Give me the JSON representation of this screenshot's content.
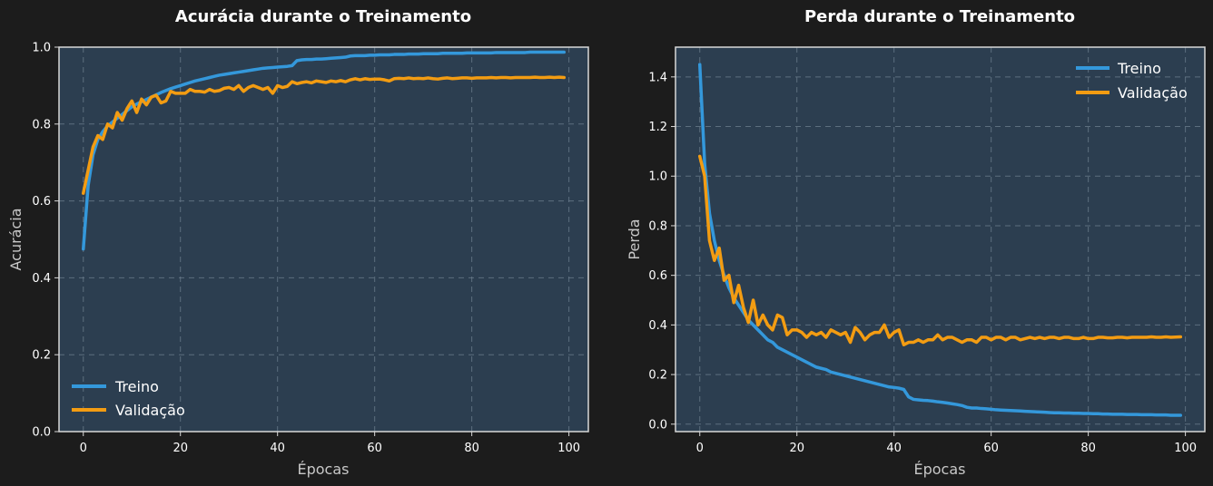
{
  "colors": {
    "train": "#3498db",
    "validation": "#f39c12",
    "plot_bg": "#2c3e50",
    "figure_bg": "#1c1c1c"
  },
  "chart_data": [
    {
      "type": "line",
      "title": "Acurácia durante o Treinamento",
      "xlabel": "Épocas",
      "ylabel": "Acurácia",
      "xlim": [
        -5,
        104
      ],
      "ylim": [
        0,
        1.0
      ],
      "xticks": [
        0,
        20,
        40,
        60,
        80,
        100
      ],
      "yticks": [
        0.0,
        0.2,
        0.4,
        0.6,
        0.8,
        1.0
      ],
      "ytick_labels": [
        "0.0",
        "0.2",
        "0.4",
        "0.6",
        "0.8",
        "1.0"
      ],
      "grid": true,
      "legend_position": "lower-left",
      "series": [
        {
          "name": "Treino",
          "color": "#3498db",
          "values": [
            0.475,
            0.64,
            0.72,
            0.76,
            0.78,
            0.795,
            0.805,
            0.815,
            0.825,
            0.835,
            0.845,
            0.852,
            0.858,
            0.864,
            0.87,
            0.876,
            0.882,
            0.887,
            0.892,
            0.896,
            0.9,
            0.904,
            0.908,
            0.912,
            0.915,
            0.918,
            0.921,
            0.924,
            0.927,
            0.929,
            0.931,
            0.933,
            0.935,
            0.937,
            0.939,
            0.941,
            0.943,
            0.945,
            0.946,
            0.947,
            0.948,
            0.949,
            0.95,
            0.952,
            0.965,
            0.967,
            0.968,
            0.968,
            0.969,
            0.969,
            0.97,
            0.971,
            0.972,
            0.973,
            0.974,
            0.977,
            0.978,
            0.978,
            0.978,
            0.979,
            0.979,
            0.98,
            0.98,
            0.98,
            0.981,
            0.981,
            0.981,
            0.982,
            0.982,
            0.982,
            0.983,
            0.983,
            0.983,
            0.983,
            0.984,
            0.984,
            0.984,
            0.984,
            0.984,
            0.985,
            0.985,
            0.985,
            0.985,
            0.985,
            0.985,
            0.986,
            0.986,
            0.986,
            0.986,
            0.986,
            0.986,
            0.986,
            0.987,
            0.987,
            0.987,
            0.987,
            0.987,
            0.987,
            0.987,
            0.987
          ]
        },
        {
          "name": "Validação",
          "color": "#f39c12",
          "values": [
            0.62,
            0.68,
            0.74,
            0.77,
            0.76,
            0.8,
            0.79,
            0.83,
            0.81,
            0.84,
            0.86,
            0.83,
            0.865,
            0.85,
            0.87,
            0.875,
            0.855,
            0.86,
            0.885,
            0.88,
            0.88,
            0.88,
            0.89,
            0.885,
            0.885,
            0.883,
            0.89,
            0.885,
            0.887,
            0.893,
            0.895,
            0.89,
            0.9,
            0.885,
            0.895,
            0.9,
            0.895,
            0.89,
            0.895,
            0.88,
            0.9,
            0.895,
            0.898,
            0.91,
            0.905,
            0.908,
            0.91,
            0.907,
            0.912,
            0.91,
            0.908,
            0.912,
            0.91,
            0.913,
            0.91,
            0.915,
            0.918,
            0.915,
            0.918,
            0.916,
            0.917,
            0.917,
            0.915,
            0.912,
            0.918,
            0.919,
            0.918,
            0.92,
            0.918,
            0.919,
            0.918,
            0.92,
            0.918,
            0.917,
            0.919,
            0.92,
            0.918,
            0.919,
            0.92,
            0.92,
            0.919,
            0.92,
            0.92,
            0.92,
            0.921,
            0.92,
            0.921,
            0.921,
            0.92,
            0.921,
            0.921,
            0.921,
            0.921,
            0.922,
            0.921,
            0.921,
            0.922,
            0.921,
            0.922,
            0.921
          ]
        }
      ]
    },
    {
      "type": "line",
      "title": "Perda durante o Treinamento",
      "xlabel": "Épocas",
      "ylabel": "Perda",
      "xlim": [
        -5,
        104
      ],
      "ylim": [
        -0.03,
        1.52
      ],
      "xticks": [
        0,
        20,
        40,
        60,
        80,
        100
      ],
      "yticks": [
        0.0,
        0.2,
        0.4,
        0.6,
        0.8,
        1.0,
        1.2,
        1.4
      ],
      "ytick_labels": [
        "0.0",
        "0.2",
        "0.4",
        "0.6",
        "0.8",
        "1.0",
        "1.2",
        "1.4"
      ],
      "grid": true,
      "legend_position": "upper-right",
      "series": [
        {
          "name": "Treino",
          "color": "#3498db",
          "values": [
            1.45,
            1.05,
            0.85,
            0.74,
            0.66,
            0.6,
            0.55,
            0.51,
            0.48,
            0.45,
            0.42,
            0.4,
            0.38,
            0.36,
            0.34,
            0.33,
            0.31,
            0.3,
            0.29,
            0.28,
            0.27,
            0.26,
            0.25,
            0.24,
            0.23,
            0.225,
            0.22,
            0.21,
            0.205,
            0.2,
            0.195,
            0.19,
            0.185,
            0.18,
            0.175,
            0.17,
            0.165,
            0.16,
            0.155,
            0.15,
            0.148,
            0.145,
            0.14,
            0.11,
            0.1,
            0.098,
            0.096,
            0.095,
            0.093,
            0.09,
            0.088,
            0.085,
            0.082,
            0.079,
            0.075,
            0.068,
            0.065,
            0.065,
            0.063,
            0.062,
            0.06,
            0.058,
            0.057,
            0.056,
            0.055,
            0.054,
            0.053,
            0.052,
            0.051,
            0.05,
            0.049,
            0.048,
            0.047,
            0.046,
            0.046,
            0.045,
            0.045,
            0.044,
            0.044,
            0.043,
            0.043,
            0.042,
            0.042,
            0.041,
            0.041,
            0.04,
            0.04,
            0.04,
            0.039,
            0.039,
            0.039,
            0.038,
            0.038,
            0.038,
            0.037,
            0.037,
            0.037,
            0.036,
            0.036,
            0.036
          ]
        },
        {
          "name": "Validação",
          "color": "#f39c12",
          "values": [
            1.08,
            1.0,
            0.74,
            0.66,
            0.71,
            0.58,
            0.6,
            0.49,
            0.56,
            0.47,
            0.41,
            0.5,
            0.4,
            0.44,
            0.4,
            0.38,
            0.44,
            0.43,
            0.36,
            0.38,
            0.38,
            0.37,
            0.35,
            0.37,
            0.36,
            0.37,
            0.35,
            0.38,
            0.37,
            0.36,
            0.37,
            0.33,
            0.39,
            0.37,
            0.34,
            0.36,
            0.37,
            0.37,
            0.4,
            0.35,
            0.37,
            0.38,
            0.32,
            0.33,
            0.33,
            0.34,
            0.33,
            0.34,
            0.34,
            0.36,
            0.34,
            0.35,
            0.35,
            0.34,
            0.33,
            0.34,
            0.34,
            0.33,
            0.35,
            0.35,
            0.34,
            0.35,
            0.35,
            0.34,
            0.35,
            0.35,
            0.34,
            0.345,
            0.35,
            0.345,
            0.35,
            0.345,
            0.35,
            0.35,
            0.345,
            0.35,
            0.35,
            0.345,
            0.345,
            0.35,
            0.345,
            0.345,
            0.35,
            0.35,
            0.348,
            0.348,
            0.35,
            0.35,
            0.348,
            0.35,
            0.35,
            0.35,
            0.35,
            0.352,
            0.35,
            0.35,
            0.352,
            0.35,
            0.351,
            0.352
          ]
        }
      ]
    }
  ]
}
